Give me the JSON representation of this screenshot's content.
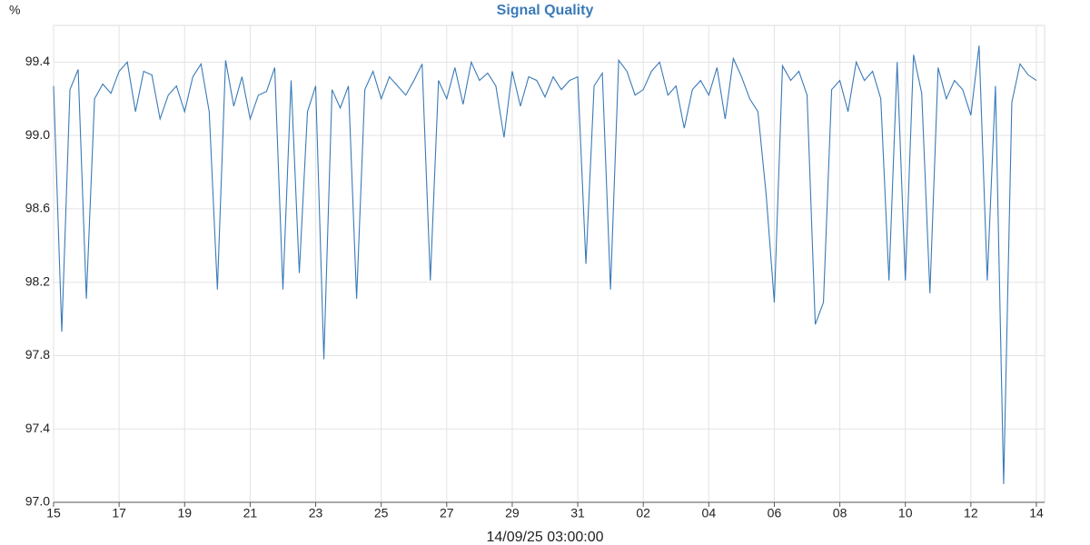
{
  "chart_data": {
    "type": "line",
    "title": "Signal Quality",
    "y_label": "%",
    "x_label": "14/09/25 03:00:00",
    "x": [
      0,
      0.25,
      0.5,
      0.75,
      1,
      1.25,
      1.5,
      1.75,
      2,
      2.25,
      2.5,
      2.75,
      3,
      3.25,
      3.5,
      3.75,
      4,
      4.25,
      4.5,
      4.75,
      5,
      5.25,
      5.5,
      5.75,
      6,
      6.25,
      6.5,
      6.75,
      7,
      7.25,
      7.5,
      7.75,
      8,
      8.25,
      8.5,
      8.75,
      9,
      9.25,
      9.5,
      9.75,
      10,
      10.25,
      10.5,
      10.75,
      11,
      11.25,
      11.5,
      11.75,
      12,
      12.25,
      12.5,
      12.75,
      13,
      13.25,
      13.5,
      13.75,
      14,
      14.25,
      14.5,
      14.75,
      15,
      15.25,
      15.5,
      15.75,
      16,
      16.25,
      16.5,
      16.75,
      17,
      17.25,
      17.5,
      17.75,
      18,
      18.25,
      18.5,
      18.75,
      19,
      19.25,
      19.5,
      19.75,
      20,
      20.25,
      20.5,
      20.75,
      21,
      21.25,
      21.5,
      21.75,
      22,
      22.25,
      22.5,
      22.75,
      23,
      23.25,
      23.5,
      23.75,
      24,
      24.25,
      24.5,
      24.75,
      25,
      25.25,
      25.5,
      25.75,
      26,
      26.25,
      26.5,
      26.75,
      27,
      27.25,
      27.5,
      27.75,
      28,
      28.25,
      28.5,
      28.75,
      29,
      29.25,
      29.5,
      29.75,
      30
    ],
    "values": [
      99.27,
      97.93,
      99.25,
      99.36,
      98.11,
      99.2,
      99.28,
      99.23,
      99.35,
      99.4,
      99.13,
      99.35,
      99.33,
      99.09,
      99.22,
      99.27,
      99.13,
      99.32,
      99.39,
      99.13,
      98.16,
      99.41,
      99.16,
      99.32,
      99.09,
      99.22,
      99.24,
      99.37,
      98.16,
      99.3,
      98.25,
      99.13,
      99.27,
      97.78,
      99.25,
      99.15,
      99.27,
      98.11,
      99.25,
      99.35,
      99.2,
      99.32,
      99.27,
      99.22,
      99.3,
      99.39,
      98.21,
      99.3,
      99.2,
      99.37,
      99.17,
      99.4,
      99.3,
      99.34,
      99.27,
      98.99,
      99.35,
      99.16,
      99.32,
      99.3,
      99.21,
      99.32,
      99.25,
      99.3,
      99.32,
      98.3,
      99.27,
      99.34,
      98.16,
      99.41,
      99.35,
      99.22,
      99.25,
      99.35,
      99.4,
      99.22,
      99.27,
      99.04,
      99.25,
      99.3,
      99.22,
      99.37,
      99.09,
      99.42,
      99.32,
      99.2,
      99.13,
      98.68,
      98.09,
      99.38,
      99.3,
      99.35,
      99.22,
      97.97,
      98.09,
      99.25,
      99.3,
      99.13,
      99.4,
      99.3,
      99.35,
      99.2,
      98.21,
      99.4,
      98.21,
      99.44,
      99.23,
      98.14,
      99.37,
      99.2,
      99.3,
      99.25,
      99.11,
      99.49,
      98.21,
      99.27,
      97.1,
      99.18,
      99.39,
      99.33,
      99.3
    ],
    "color": "#3a7ab8",
    "xlim": [
      0,
      30.25
    ],
    "xticks": [
      {
        "value": 0,
        "label": "15"
      },
      {
        "value": 2,
        "label": "17"
      },
      {
        "value": 4,
        "label": "19"
      },
      {
        "value": 6,
        "label": "21"
      },
      {
        "value": 8,
        "label": "23"
      },
      {
        "value": 10,
        "label": "25"
      },
      {
        "value": 12,
        "label": "27"
      },
      {
        "value": 14,
        "label": "29"
      },
      {
        "value": 16,
        "label": "31"
      },
      {
        "value": 18,
        "label": "02"
      },
      {
        "value": 20,
        "label": "04"
      },
      {
        "value": 22,
        "label": "06"
      },
      {
        "value": 24,
        "label": "08"
      },
      {
        "value": 26,
        "label": "10"
      },
      {
        "value": 28,
        "label": "12"
      },
      {
        "value": 30,
        "label": "14"
      }
    ],
    "ylim": [
      97,
      99.6
    ],
    "yticks": [
      {
        "value": 97,
        "label": "97.0"
      },
      97.4,
      97.8,
      98.2,
      98.6,
      {
        "value": 99,
        "label": "99.0"
      },
      99.4
    ],
    "grid": true
  }
}
